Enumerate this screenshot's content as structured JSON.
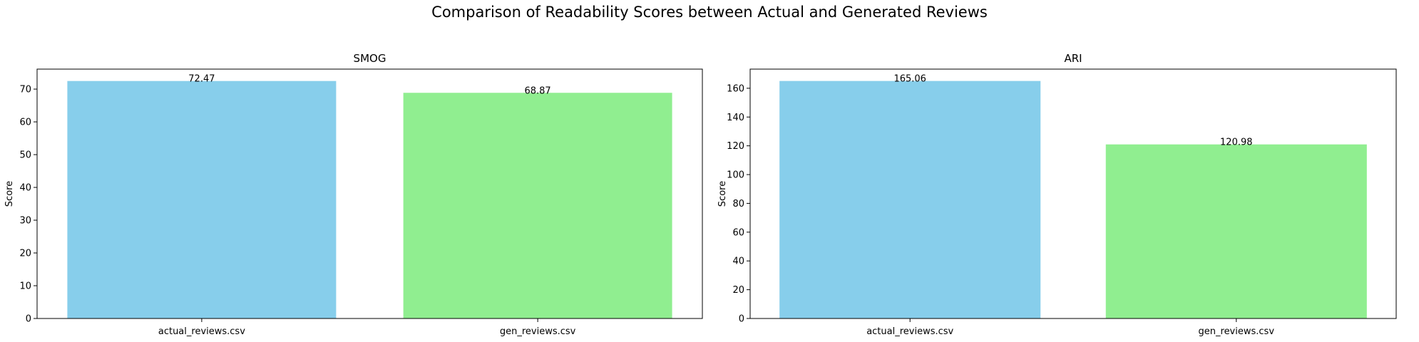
{
  "figure": {
    "title": "Comparison of Readability Scores between Actual and Generated Reviews"
  },
  "colors": {
    "bars": [
      "#87CEEB",
      "#90EE90"
    ],
    "axis": "#000000"
  },
  "chart_data": [
    {
      "type": "bar",
      "title": "SMOG",
      "xlabel": "",
      "ylabel": "Score",
      "categories": [
        "actual_reviews.csv",
        "gen_reviews.csv"
      ],
      "values": [
        72.47,
        68.87
      ],
      "value_labels": [
        "72.47",
        "68.87"
      ],
      "ylim": [
        0,
        76.1
      ],
      "yticks": [
        0,
        10,
        20,
        30,
        40,
        50,
        60,
        70
      ],
      "grid": false,
      "legend": "none"
    },
    {
      "type": "bar",
      "title": "ARI",
      "xlabel": "",
      "ylabel": "Score",
      "categories": [
        "actual_reviews.csv",
        "gen_reviews.csv"
      ],
      "values": [
        165.06,
        120.98
      ],
      "value_labels": [
        "165.06",
        "120.98"
      ],
      "ylim": [
        0,
        173.3
      ],
      "yticks": [
        0,
        20,
        40,
        60,
        80,
        100,
        120,
        140,
        160
      ],
      "grid": false,
      "legend": "none"
    }
  ]
}
